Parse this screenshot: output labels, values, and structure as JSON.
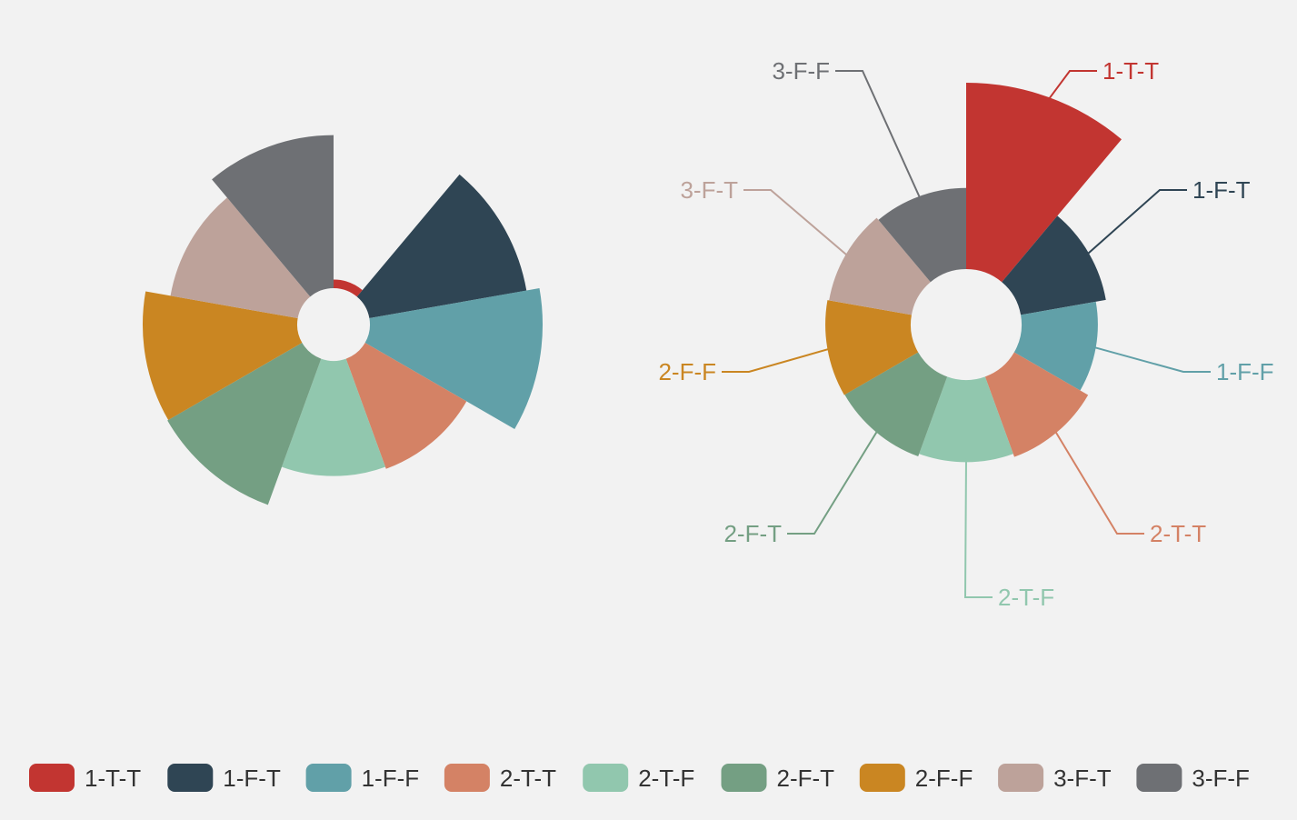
{
  "chart_data": [
    {
      "type": "pie",
      "variant": "rose",
      "categories": [
        "1-T-T",
        "1-F-T",
        "1-F-F",
        "2-T-T",
        "2-T-F",
        "2-F-T",
        "2-F-F",
        "3-F-T",
        "3-F-F"
      ],
      "values": [
        1.7,
        31.6,
        34.2,
        23.2,
        22.8,
        30.8,
        30.6,
        25.6,
        30.3
      ],
      "colors": [
        "#c23531",
        "#2f4554",
        "#61a0a8",
        "#d48265",
        "#91c7ae",
        "#749f83",
        "#ca8622",
        "#bda29a",
        "#6e7074"
      ],
      "labels_shown": false
    },
    {
      "type": "pie",
      "variant": "rose",
      "categories": [
        "1-T-T",
        "1-F-T",
        "1-F-F",
        "2-T-T",
        "2-T-F",
        "2-F-T",
        "2-F-F",
        "3-F-T",
        "3-F-F"
      ],
      "values": [
        34.7,
        16.1,
        14.2,
        15.9,
        15.3,
        15.8,
        15.9,
        15.6,
        15.1
      ],
      "colors": [
        "#c23531",
        "#2f4554",
        "#61a0a8",
        "#d48265",
        "#91c7ae",
        "#749f83",
        "#ca8622",
        "#bda29a",
        "#6e7074"
      ],
      "labels_shown": true
    }
  ],
  "legend": {
    "position": "bottom",
    "items": [
      {
        "label": "1-T-T",
        "color": "#c23531"
      },
      {
        "label": "1-F-T",
        "color": "#2f4554"
      },
      {
        "label": "1-F-F",
        "color": "#61a0a8"
      },
      {
        "label": "2-T-T",
        "color": "#d48265"
      },
      {
        "label": "2-T-F",
        "color": "#91c7ae"
      },
      {
        "label": "2-F-T",
        "color": "#749f83"
      },
      {
        "label": "2-F-F",
        "color": "#ca8622"
      },
      {
        "label": "3-F-T",
        "color": "#bda29a"
      },
      {
        "label": "3-F-F",
        "color": "#6e7074"
      }
    ]
  }
}
